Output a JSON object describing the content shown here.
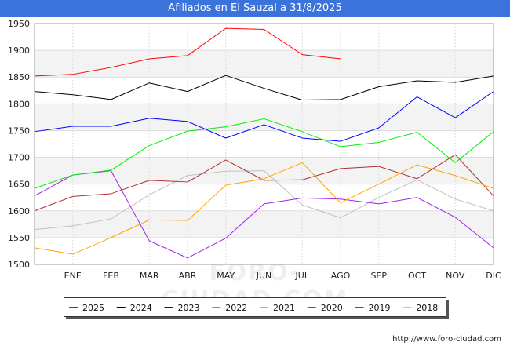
{
  "title": "Afiliados en El Sauzal a 31/8/2025",
  "source": "http://www.foro-ciudad.com",
  "watermark": "FORO-CIUDAD.COM",
  "chart_data": {
    "type": "line",
    "title": "Afiliados en El Sauzal a 31/8/2025",
    "categories": [
      "",
      "ENE",
      "FEB",
      "MAR",
      "ABR",
      "MAY",
      "JUN",
      "JUL",
      "AGO",
      "SEP",
      "OCT",
      "NOV",
      "DIC"
    ],
    "ylim": [
      1500,
      1950
    ],
    "yticks": [
      1500,
      1550,
      1600,
      1650,
      1700,
      1750,
      1800,
      1850,
      1900,
      1950
    ],
    "grid": true,
    "legend_position": "bottom",
    "series": [
      {
        "name": "2025",
        "color": "#ff0000",
        "values": [
          1852,
          1855,
          1868,
          1884,
          1890,
          1941,
          1939,
          1892,
          1884,
          null,
          null,
          null,
          null
        ]
      },
      {
        "name": "2024",
        "color": "#000000",
        "values": [
          1823,
          1817,
          1808,
          1839,
          1823,
          1853,
          1829,
          1807,
          1808,
          1832,
          1843,
          1840,
          1852
        ]
      },
      {
        "name": "2023",
        "color": "#0000ff",
        "values": [
          1748,
          1758,
          1758,
          1773,
          1767,
          1736,
          1761,
          1736,
          1730,
          1755,
          1813,
          1774,
          1823
        ]
      },
      {
        "name": "2022",
        "color": "#00ee00",
        "values": [
          1642,
          1667,
          1676,
          1722,
          1749,
          1757,
          1772,
          1748,
          1720,
          1728,
          1747,
          1690,
          1748
        ]
      },
      {
        "name": "2021",
        "color": "#ffa500",
        "values": [
          1531,
          1519,
          1550,
          1583,
          1582,
          1648,
          1660,
          1690,
          1615,
          1650,
          1686,
          1666,
          1642
        ]
      },
      {
        "name": "2020",
        "color": "#a020f0",
        "values": [
          1628,
          1667,
          1675,
          1544,
          1512,
          1549,
          1613,
          1624,
          1622,
          1613,
          1625,
          1588,
          1531
        ]
      },
      {
        "name": "2019",
        "color": "#b03030",
        "values": [
          1600,
          1627,
          1632,
          1657,
          1654,
          1695,
          1657,
          1658,
          1679,
          1683,
          1660,
          1705,
          1628
        ]
      },
      {
        "name": "2018",
        "color": "#c0c0c0",
        "values": [
          1565,
          1572,
          1585,
          1630,
          1666,
          1674,
          1675,
          1611,
          1587,
          1625,
          1658,
          1622,
          1600
        ]
      }
    ]
  }
}
